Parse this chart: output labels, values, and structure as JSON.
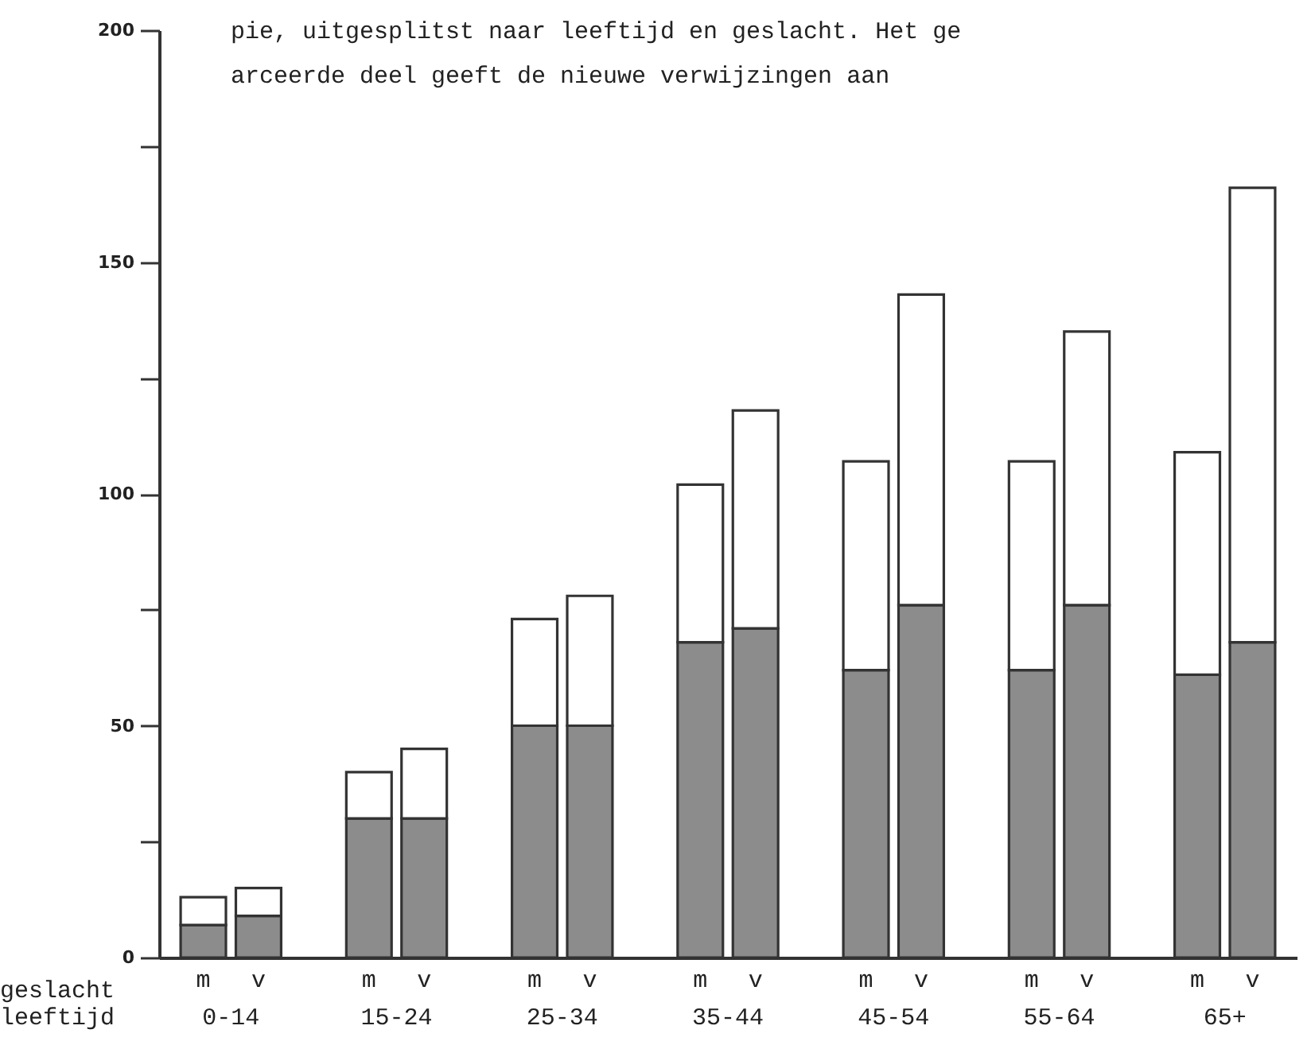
{
  "chart_data": {
    "type": "bar",
    "stacked": true,
    "annotations": [
      "pie, uitgesplitst naar leeftijd en geslacht. Het ge",
      "arceerde deel geeft de nieuwe verwijzingen aan",
      "geslacht",
      "leeftijd",
      "0-14",
      "15-24",
      "25-34",
      "35-44",
      "45-54",
      "55-64",
      "65+"
    ],
    "categories": [
      "m",
      "v",
      "m",
      "v",
      "m",
      "v",
      "m",
      "v",
      "m",
      "v",
      "m",
      "v",
      "m",
      "v"
    ],
    "series": [
      {
        "color": "#8c8c8c",
        "values": [
          7,
          9,
          30,
          30,
          50,
          50,
          68,
          71,
          62,
          76,
          62,
          76,
          61,
          68
        ]
      },
      {
        "color": "#ffffff",
        "values": [
          6,
          6,
          10,
          15,
          23,
          28,
          34,
          47,
          45,
          67,
          45,
          59,
          48,
          98
        ]
      }
    ],
    "ylim": [
      0,
      200
    ],
    "yticks": [
      0,
      {
        "value": 25,
        "label": null
      },
      50,
      {
        "value": 75,
        "label": null
      },
      100,
      {
        "value": 125,
        "label": null
      },
      150,
      {
        "value": 175,
        "label": null
      },
      200
    ],
    "grid": false
  }
}
